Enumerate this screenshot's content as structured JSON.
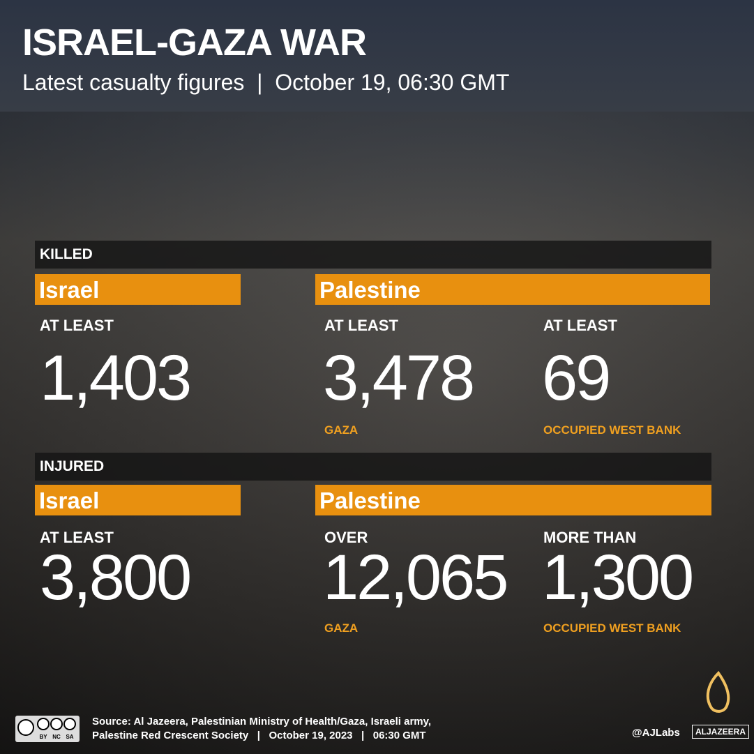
{
  "header": {
    "title": "ISRAEL-GAZA WAR",
    "subtitle": "Latest casualty figures  |  October 19, 06:30 GMT"
  },
  "sections": [
    {
      "label": "KILLED",
      "groups": [
        {
          "name": "Israel",
          "figures": [
            {
              "qualifier": "AT LEAST",
              "value": "1,403"
            }
          ]
        },
        {
          "name": "Palestine",
          "figures": [
            {
              "qualifier": "AT LEAST",
              "value": "3,478",
              "place": "GAZA"
            },
            {
              "qualifier": "AT LEAST",
              "value": "69",
              "place": "OCCUPIED WEST BANK"
            }
          ]
        }
      ]
    },
    {
      "label": "INJURED",
      "groups": [
        {
          "name": "Israel",
          "figures": [
            {
              "qualifier": "AT LEAST",
              "value": "3,800"
            }
          ]
        },
        {
          "name": "Palestine",
          "figures": [
            {
              "qualifier": "OVER",
              "value": "12,065",
              "place": "GAZA"
            },
            {
              "qualifier": "MORE THAN",
              "value": "1,300",
              "place": "OCCUPIED WEST BANK"
            }
          ]
        }
      ]
    }
  ],
  "footer": {
    "source_line1": "Source: Al Jazeera, Palestinian Ministry of Health/Gaza, Israeli army,",
    "source_line2": "Palestine Red Crescent Society   |   October 19, 2023   |   06:30 GMT",
    "license": [
      "BY",
      "NC",
      "SA"
    ],
    "handle": "@AJLabs",
    "brand": "ALJAZEERA"
  }
}
